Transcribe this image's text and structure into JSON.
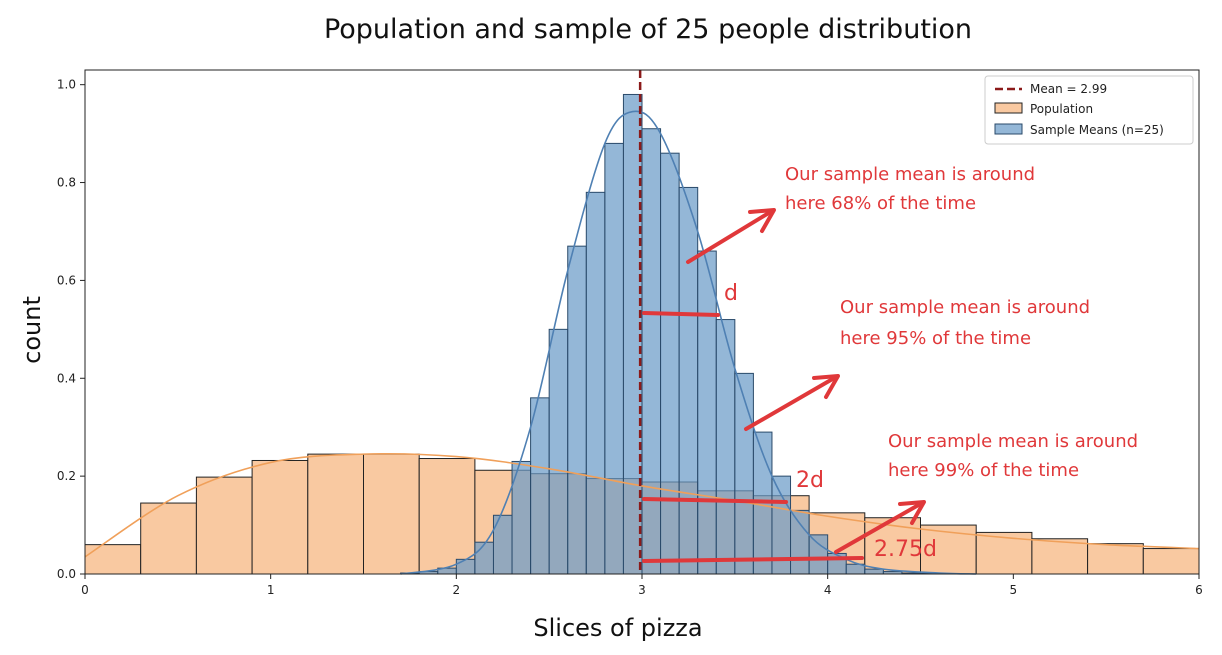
{
  "chart_data": {
    "type": "bar",
    "title": "Population and sample of 25 people distribution",
    "xlabel": "Slices of pizza",
    "ylabel": "count",
    "xlim": [
      0,
      6
    ],
    "ylim": [
      0,
      1.03
    ],
    "xticks": [
      "0",
      "1",
      "2",
      "3",
      "4",
      "5",
      "6"
    ],
    "yticks": [
      "0.0",
      "0.2",
      "0.4",
      "0.6",
      "0.8",
      "1.0"
    ],
    "grid": false,
    "legend_position": "top-right",
    "mean_line": {
      "label": "Mean = 2.99",
      "x": 2.99,
      "color": "#8b1a1a"
    },
    "series": [
      {
        "name": "Population",
        "kind": "histogram",
        "color": "#f9c9a1",
        "edge": "#222222",
        "bin_edges": [
          0,
          0.3,
          0.6,
          0.9,
          1.2,
          1.5,
          1.8,
          2.1,
          2.4,
          2.7,
          3.0,
          3.3,
          3.6,
          3.9,
          4.2,
          4.5,
          4.8,
          5.1,
          5.4,
          5.7,
          6.0
        ],
        "values": [
          0.06,
          0.145,
          0.198,
          0.232,
          0.245,
          0.245,
          0.236,
          0.212,
          0.205,
          0.195,
          0.188,
          0.17,
          0.16,
          0.125,
          0.115,
          0.1,
          0.085,
          0.072,
          0.062,
          0.052
        ],
        "kde_color": "#f0a05a",
        "kde": {
          "x": [
            0,
            0.5,
            1.0,
            1.5,
            2.0,
            2.5,
            3.0,
            3.5,
            4.0,
            4.5,
            5.0,
            5.5,
            6.0
          ],
          "y": [
            0.035,
            0.16,
            0.228,
            0.245,
            0.24,
            0.215,
            0.18,
            0.15,
            0.118,
            0.092,
            0.073,
            0.06,
            0.052
          ]
        }
      },
      {
        "name": "Sample Means (n=25)",
        "kind": "histogram",
        "color": "#6b9bc8",
        "edge": "#2a4a6a",
        "bin_edges": [
          1.7,
          1.8,
          1.9,
          2.0,
          2.1,
          2.2,
          2.3,
          2.4,
          2.5,
          2.6,
          2.7,
          2.8,
          2.9,
          3.0,
          3.1,
          3.2,
          3.3,
          3.4,
          3.5,
          3.6,
          3.7,
          3.8,
          3.9,
          4.0,
          4.1,
          4.2,
          4.3,
          4.4,
          4.5,
          4.6,
          4.7,
          4.8
        ],
        "values": [
          0.002,
          0.005,
          0.012,
          0.03,
          0.065,
          0.12,
          0.23,
          0.36,
          0.5,
          0.67,
          0.78,
          0.88,
          0.98,
          0.91,
          0.86,
          0.79,
          0.66,
          0.52,
          0.41,
          0.29,
          0.2,
          0.13,
          0.08,
          0.042,
          0.02,
          0.01,
          0.005,
          0.002,
          0.001,
          0.0005,
          0.0003
        ],
        "kde_color": "#4f80b3",
        "kde": {
          "x": [
            1.7,
            2.0,
            2.2,
            2.4,
            2.6,
            2.8,
            2.95,
            3.1,
            3.3,
            3.5,
            3.7,
            3.9,
            4.1,
            4.3,
            4.6,
            4.8
          ],
          "y": [
            0.0,
            0.02,
            0.09,
            0.3,
            0.62,
            0.88,
            0.945,
            0.9,
            0.7,
            0.42,
            0.2,
            0.08,
            0.03,
            0.01,
            0.002,
            0.0
          ]
        }
      }
    ],
    "annotations": [
      {
        "text": "Our sample mean is around\nhere 68% of the time"
      },
      {
        "text": "Our sample mean is around\nhere 95% of the time"
      },
      {
        "text": "Our sample mean is around\nhere 99% of the time"
      },
      {
        "text": "d"
      },
      {
        "text": "2d"
      },
      {
        "text": "2.75d"
      }
    ],
    "annotation_color": "#e0383a"
  }
}
